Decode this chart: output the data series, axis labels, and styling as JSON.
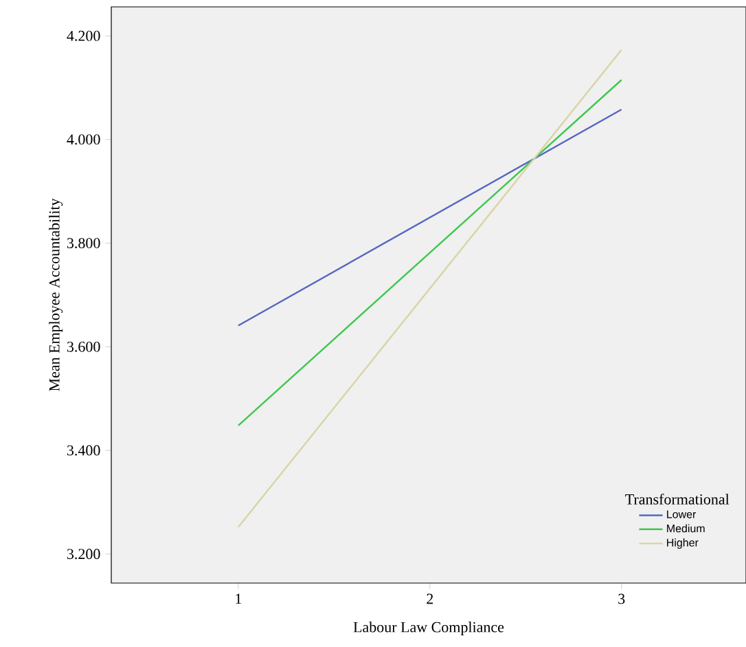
{
  "chart_data": {
    "type": "line",
    "xlabel": "Labour Law Compliance",
    "ylabel": "Mean Employee Accountability",
    "legend_title": "Transformational",
    "legend": "bottom right",
    "xlim": [
      0.337,
      3.65
    ],
    "ylim": [
      3.144,
      4.256
    ],
    "xticks": [
      1,
      2,
      3
    ],
    "yticks": [
      {
        "value": 3.2,
        "label": "3.200"
      },
      {
        "value": 3.4,
        "label": "3.400"
      },
      {
        "value": 3.6,
        "label": "3.600"
      },
      {
        "value": 3.8,
        "label": "3.800"
      },
      {
        "value": 4.0,
        "label": "4.000"
      },
      {
        "value": 4.2,
        "label": "4.200"
      }
    ],
    "x": [
      1,
      3
    ],
    "series": [
      {
        "name": "Lower",
        "color": "#5566c0",
        "values": [
          3.641,
          4.058
        ]
      },
      {
        "name": "Medium",
        "color": "#3cc84c",
        "values": [
          3.448,
          4.115
        ]
      },
      {
        "name": "Higher",
        "color": "#d8d4a4",
        "values": [
          3.252,
          4.173
        ]
      }
    ]
  }
}
